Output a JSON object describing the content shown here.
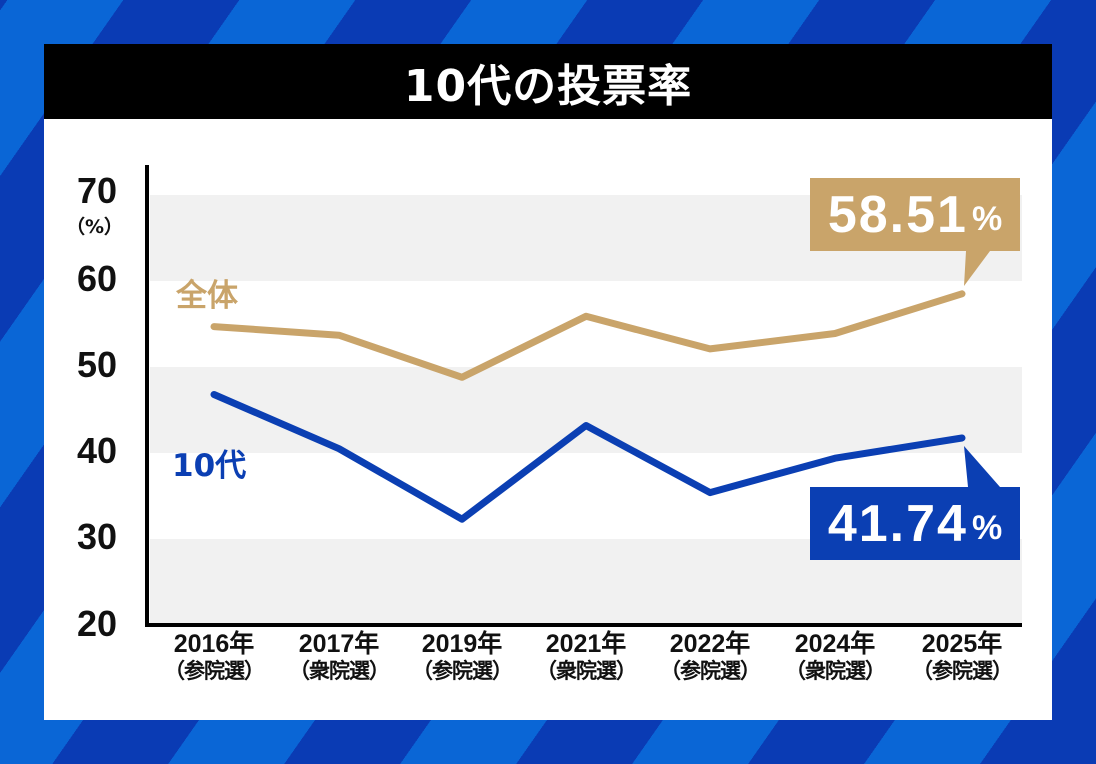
{
  "title": "10代の投票率",
  "colors": {
    "overall": "#c9a46a",
    "teens": "#0b3fb3",
    "band": "#f1f1f1",
    "title_bg": "#000000",
    "bg_dark": "#0a3bb4",
    "bg_light": "#0a66d6"
  },
  "yaxis": {
    "unit": "（%）",
    "ticks": [
      "70",
      "60",
      "50",
      "40",
      "30",
      "20"
    ]
  },
  "xaxis": {
    "ticks": [
      {
        "year": "2016年",
        "election": "（参院選）"
      },
      {
        "year": "2017年",
        "election": "（衆院選）"
      },
      {
        "year": "2019年",
        "election": "（参院選）"
      },
      {
        "year": "2021年",
        "election": "（衆院選）"
      },
      {
        "year": "2022年",
        "election": "（参院選）"
      },
      {
        "year": "2024年",
        "election": "（衆院選）"
      },
      {
        "year": "2025年",
        "election": "（参院選）"
      }
    ]
  },
  "series_labels": {
    "overall": "全体",
    "teens": "10代"
  },
  "callouts": {
    "overall": {
      "value": "58.51",
      "unit": "%"
    },
    "teens": {
      "value": "41.74",
      "unit": "%"
    }
  },
  "chart_data": {
    "type": "line",
    "title": "10代の投票率",
    "xlabel": "",
    "ylabel": "（%）",
    "ylim": [
      20,
      70
    ],
    "yticks": [
      20,
      30,
      40,
      50,
      60,
      70
    ],
    "grid": "alternating horizontal bands",
    "categories": [
      "2016年（参院選）",
      "2017年（衆院選）",
      "2019年（参院選）",
      "2021年（衆院選）",
      "2022年（参院選）",
      "2024年（衆院選）",
      "2025年（参院選）"
    ],
    "series": [
      {
        "name": "全体",
        "color": "#c9a46a",
        "values": [
          54.7,
          53.7,
          48.8,
          55.9,
          52.1,
          53.9,
          58.51
        ]
      },
      {
        "name": "10代",
        "color": "#0b3fb3",
        "values": [
          46.8,
          40.5,
          32.3,
          43.2,
          35.4,
          39.4,
          41.74
        ]
      }
    ],
    "annotations": [
      {
        "series": "全体",
        "category": "2025年（参院選）",
        "text": "58.51%"
      },
      {
        "series": "10代",
        "category": "2025年（参院選）",
        "text": "41.74%"
      }
    ],
    "legend": "inline labels at left (全体, 10代)"
  }
}
